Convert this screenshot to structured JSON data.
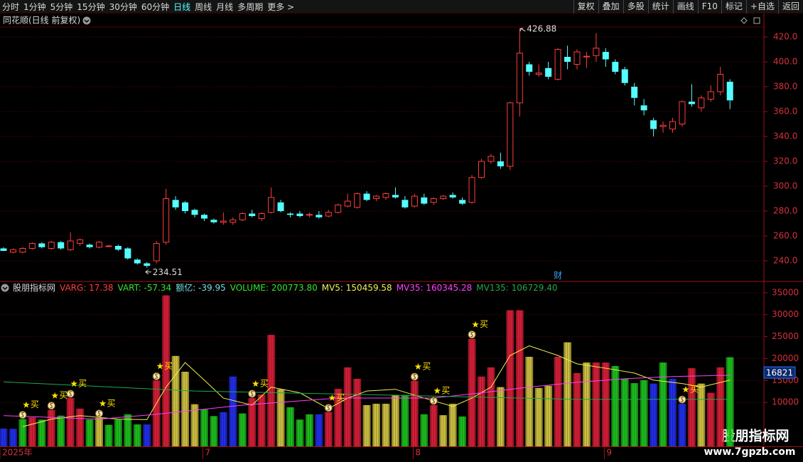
{
  "toolbar": {
    "left": [
      "分时",
      "1分钟",
      "5分钟",
      "15分钟",
      "30分钟",
      "60分钟",
      "日线",
      "周线",
      "月线",
      "多周期",
      "更多 >"
    ],
    "active": "日线",
    "right": [
      "复权",
      "叠加",
      "多股",
      "统计",
      "画线",
      "F10",
      "标记",
      "+自选",
      "返回"
    ]
  },
  "panel_title": "同花顺(日线 前复权)",
  "chart_data": [
    {
      "type": "candlestick",
      "up_color": "#ff3c3c",
      "down_color": "#54ffff",
      "open": [
        250,
        247,
        247,
        250,
        254,
        250,
        255,
        249,
        254,
        253,
        251,
        252,
        252,
        250,
        241,
        238,
        240,
        255,
        289,
        287,
        281,
        277,
        273,
        271,
        271,
        273,
        278,
        274,
        279,
        287,
        278,
        278,
        277,
        277,
        276,
        279,
        284,
        283,
        294,
        290,
        291,
        293,
        289,
        284,
        291,
        287,
        290,
        293,
        289,
        287,
        307,
        320,
        320,
        316,
        367,
        398,
        390,
        395,
        386,
        404,
        398,
        404,
        405,
        408,
        400,
        394,
        380,
        365,
        353,
        348,
        346,
        350,
        368,
        363,
        370,
        376,
        384
      ],
      "high": [
        251,
        250,
        251,
        255,
        255,
        256,
        256,
        263,
        258,
        254,
        256,
        253,
        253,
        251,
        242,
        239,
        256,
        298,
        292,
        288,
        282,
        278,
        274,
        279,
        275,
        279,
        281,
        279,
        299,
        289,
        279,
        280,
        279,
        280,
        281,
        286,
        294,
        295,
        296,
        293,
        295,
        299,
        292,
        294,
        294,
        291,
        293,
        295,
        291,
        309,
        322,
        326,
        327,
        368,
        426.88,
        400,
        398,
        400,
        411,
        413,
        410,
        408,
        423,
        411,
        402,
        396,
        383,
        370,
        355,
        352,
        355,
        369,
        382,
        373,
        381,
        396,
        386
      ],
      "low": [
        248,
        246,
        246,
        249,
        250,
        249,
        249,
        248,
        252,
        250,
        250,
        251,
        248,
        241,
        237,
        234.51,
        238,
        253,
        281,
        278,
        275,
        272,
        270,
        269,
        269,
        272,
        275,
        272,
        278,
        279,
        275,
        275,
        275,
        274,
        275,
        278,
        283,
        282,
        288,
        288,
        289,
        290,
        282,
        283,
        285,
        285,
        289,
        290,
        285,
        286,
        306,
        318,
        314,
        313,
        356,
        389,
        388,
        386,
        385,
        394,
        394,
        395,
        400,
        396,
        390,
        381,
        365,
        357,
        340,
        343,
        343,
        348,
        364,
        360,
        368,
        373,
        362
      ],
      "close": [
        248,
        249,
        250,
        254,
        251,
        255,
        250,
        256,
        257,
        251,
        255,
        252,
        249,
        242,
        238,
        236,
        254,
        290,
        283,
        280,
        277,
        274,
        271,
        272,
        273,
        278,
        276,
        278,
        291,
        280,
        277,
        276,
        277.3,
        275,
        279,
        285,
        288,
        294,
        289,
        292,
        294,
        291,
        283,
        292,
        286,
        290,
        292,
        291,
        286,
        307,
        320,
        324,
        316,
        367,
        407,
        392,
        391,
        388,
        410,
        400,
        408,
        404.5,
        411,
        402,
        392,
        383,
        371,
        361,
        346,
        349,
        352,
        368,
        366,
        371,
        376,
        390,
        369
      ],
      "ylim": [
        224,
        428
      ],
      "yticks": [
        {
          "value": 240,
          "label": "240.0"
        },
        {
          "value": 260,
          "label": "260.0"
        },
        {
          "value": 280,
          "label": "280.0"
        },
        {
          "value": 300,
          "label": "300.0"
        },
        {
          "value": 320,
          "label": "320.0"
        },
        {
          "value": 340,
          "label": "340.0"
        },
        {
          "value": 360,
          "label": "360.0"
        },
        {
          "value": 380,
          "label": "380.0"
        },
        {
          "value": 400,
          "label": "400.0"
        },
        {
          "value": 420,
          "label": "420.0"
        }
      ],
      "grid": true,
      "news_marker": {
        "x": 58,
        "label": "财"
      }
    },
    {
      "type": "bar",
      "title": "股朋指标网",
      "indicators": [
        {
          "label": "VARG: 17.38",
          "color": "#ff3c3c"
        },
        {
          "label": "VART: -57.34",
          "color": "#2ee82e"
        },
        {
          "label": "额亿: -39.95",
          "color": "#6fe0e0"
        },
        {
          "label": "VOLUME: 200773.80",
          "color": "#2ee82e"
        },
        {
          "label": "MV5: 150459.58",
          "color": "#f0f050"
        },
        {
          "label": "MV35: 160345.28",
          "color": "#ff40ff"
        },
        {
          "label": "MV135: 106729.40",
          "color": "#1fa84a"
        }
      ],
      "values": [
        4050,
        4000,
        6200,
        6600,
        6100,
        8300,
        7000,
        11000,
        8600,
        6100,
        6500,
        4900,
        6100,
        7300,
        5000,
        5000,
        15000,
        34400,
        20600,
        17000,
        9600,
        8400,
        6900,
        7800,
        15900,
        7500,
        11000,
        11800,
        25400,
        13000,
        8900,
        6100,
        7300,
        7300,
        7800,
        13100,
        18000,
        15400,
        9400,
        9700,
        9700,
        11700,
        11700,
        14900,
        7300,
        9400,
        7100,
        9700,
        6800,
        24500,
        15900,
        18000,
        13500,
        31000,
        31000,
        20400,
        13300,
        13800,
        20400,
        23700,
        16700,
        19100,
        19100,
        19100,
        18300,
        15400,
        14400,
        15100,
        14300,
        19100,
        15400,
        9700,
        17800,
        14300,
        12200,
        18000,
        20300
      ],
      "colors": [
        "#2432ff",
        "#2432ff",
        "#1fcf1f",
        "#e8213c",
        "#1fcf1f",
        "#e8213c",
        "#1fcf1f",
        "#e8213c",
        "#e8213c",
        "#1fcf1f",
        "#e2d246",
        "#1fcf1f",
        "#1fcf1f",
        "#1fcf1f",
        "#1fcf1f",
        "#2432ff",
        "#e8213c",
        "#e8213c",
        "#e2d246",
        "#e2d246",
        "#e2d246",
        "#1fcf1f",
        "#1fcf1f",
        "#2432ff",
        "#2432ff",
        "#1fcf1f",
        "#e8213c",
        "#e8213c",
        "#e8213c",
        "#e2d246",
        "#1fcf1f",
        "#1fcf1f",
        "#1fcf1f",
        "#2432ff",
        "#e8213c",
        "#e8213c",
        "#e8213c",
        "#e8213c",
        "#e2d246",
        "#e2d246",
        "#e2d246",
        "#e2d246",
        "#1fcf1f",
        "#e8213c",
        "#1fcf1f",
        "#e8213c",
        "#e2d246",
        "#e2d246",
        "#1fcf1f",
        "#e8213c",
        "#e8213c",
        "#e8213c",
        "#e2d246",
        "#e8213c",
        "#e8213c",
        "#e2d246",
        "#e2d246",
        "#e2d246",
        "#e8213c",
        "#e2d246",
        "#e8213c",
        "#e2d246",
        "#e8213c",
        "#e8213c",
        "#1fcf1f",
        "#1fcf1f",
        "#1fcf1f",
        "#1fcf1f",
        "#2432ff",
        "#1fcf1f",
        "#2432ff",
        "#2432ff",
        "#e8213c",
        "#e2d246",
        "#e8213c",
        "#e8213c",
        "#1fcf1f"
      ],
      "lines": [
        {
          "color": "#f0f050",
          "x": [
            2,
            5,
            8,
            12,
            15,
            17,
            19,
            21,
            23,
            26,
            28,
            31,
            34,
            36,
            38,
            41,
            44,
            47,
            49,
            51,
            53,
            55,
            58,
            60,
            63,
            66,
            68,
            71,
            73,
            76
          ],
          "values": [
            4500,
            6200,
            7000,
            6200,
            6100,
            13500,
            19100,
            15100,
            11000,
            9400,
            13500,
            12200,
            8600,
            11000,
            12600,
            13000,
            11000,
            9100,
            11000,
            13500,
            20700,
            22900,
            20700,
            18800,
            17800,
            16700,
            15100,
            14300,
            13500,
            15100
          ]
        },
        {
          "color": "#ff40ff",
          "x": [
            0,
            10,
            16,
            25,
            35,
            45,
            50,
            55,
            60,
            65,
            70,
            76
          ],
          "values": [
            7000,
            6200,
            7300,
            9400,
            11000,
            11000,
            12200,
            13500,
            14600,
            15400,
            15900,
            16200
          ]
        },
        {
          "color": "#1fa84a",
          "x": [
            0,
            20,
            40,
            60,
            76
          ],
          "values": [
            14700,
            12600,
            11700,
            10700,
            10700
          ]
        }
      ],
      "buy_signals": {
        "x": [
          2,
          5,
          7,
          10,
          16,
          26,
          34,
          43,
          45,
          49,
          71
        ],
        "label": "买"
      },
      "last_value": 16821,
      "ylim": [
        0,
        37400
      ],
      "yticks": [
        10000,
        15000,
        20000,
        25000,
        30000,
        35000
      ],
      "grid": true
    }
  ],
  "x_axis": {
    "ticks": [
      {
        "value": 0,
        "label": "2025年"
      },
      {
        "value": 21,
        "label": "7"
      },
      {
        "value": 43,
        "label": "8"
      },
      {
        "value": 63,
        "label": "9"
      }
    ]
  },
  "watermark": {
    "title": "股朋指标网",
    "url": "www.7gpzb.com"
  }
}
